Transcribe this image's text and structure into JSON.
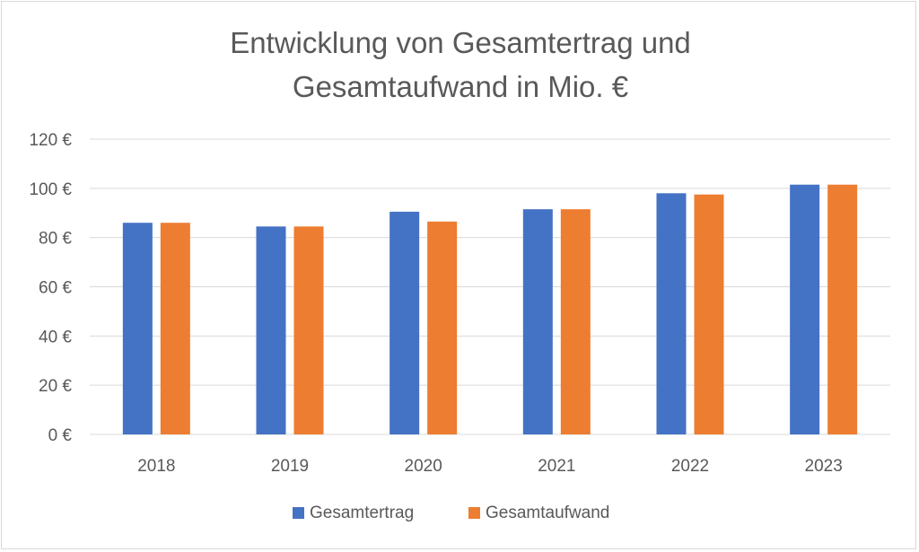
{
  "chart_data": {
    "type": "bar",
    "title_lines": [
      "Entwicklung von Gesamtertrag und",
      "Gesamtaufwand in Mio. €"
    ],
    "categories": [
      "2018",
      "2019",
      "2020",
      "2021",
      "2022",
      "2023"
    ],
    "series": [
      {
        "name": "Gesamtertrag",
        "color": "#4472C4",
        "values": [
          86,
          84.5,
          90.5,
          91.5,
          98,
          101.5
        ]
      },
      {
        "name": "Gesamtaufwand",
        "color": "#ED7D31",
        "values": [
          86,
          84.5,
          86.5,
          91.5,
          97.5,
          101.5
        ]
      }
    ],
    "ylim": [
      0,
      120
    ],
    "yticks": [
      0,
      20,
      40,
      60,
      80,
      100,
      120
    ],
    "ytick_labels": [
      "0 €",
      "20 €",
      "40 €",
      "60 €",
      "80 €",
      "100 €",
      "120 €"
    ],
    "grid": true,
    "legend_position": "bottom"
  }
}
